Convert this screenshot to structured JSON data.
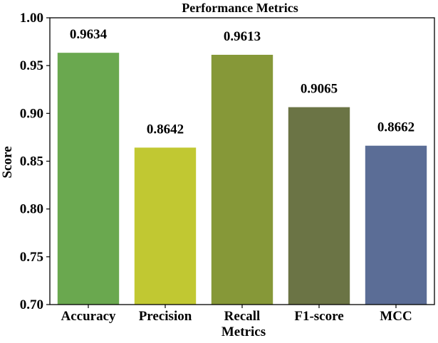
{
  "chart_data": {
    "type": "bar",
    "title": "Performance Metrics",
    "xlabel": "Metrics",
    "ylabel": "Score",
    "categories": [
      "Accuracy",
      "Precision",
      "Recall",
      "F1-score",
      "MCC"
    ],
    "values": [
      0.9634,
      0.8642,
      0.9613,
      0.9065,
      0.8662
    ],
    "value_labels": [
      "0.9634",
      "0.8642",
      "0.9613",
      "0.9065",
      "0.8662"
    ],
    "colors": [
      "#6aa84f",
      "#c1c832",
      "#869838",
      "#6b7445",
      "#5b6d96"
    ],
    "ylim": [
      0.7,
      1.0
    ],
    "yticks": [
      0.7,
      0.75,
      0.8,
      0.85,
      0.9,
      0.95,
      1.0
    ],
    "ytick_labels": [
      "0.70",
      "0.75",
      "0.80",
      "0.85",
      "0.90",
      "0.95",
      "1.00"
    ],
    "grid": false,
    "legend": "none"
  }
}
